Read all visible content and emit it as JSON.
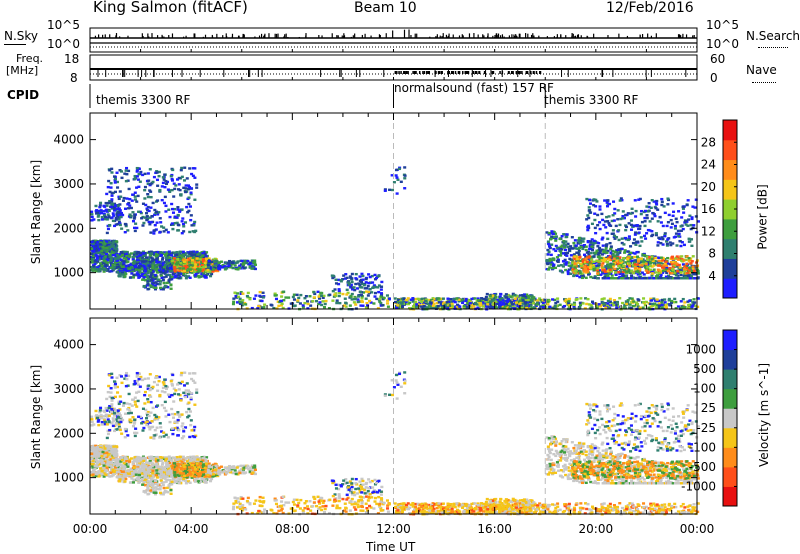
{
  "header": {
    "station": "King Salmon (fitACF)",
    "beam": "Beam 10",
    "date": "12/Feb/2016"
  },
  "sky_panel": {
    "left_label": "N.Sky",
    "right_label": "N.Search",
    "left_ticks": [
      "10^5",
      "10^0"
    ],
    "right_ticks": [
      "10^5",
      "10^0"
    ]
  },
  "freq_panel": {
    "left_label_1": "Freq.",
    "left_label_2": "[MHz]",
    "right_label": "Nave",
    "left_ticks": [
      "18",
      "8"
    ],
    "right_ticks": [
      "60",
      "0"
    ]
  },
  "cpid": {
    "label": "CPID",
    "segments": [
      {
        "name": "themis 3300 RF",
        "start": 0,
        "end": 12
      },
      {
        "name": "normalsound (fast) 157 RF",
        "start": 12,
        "end": 18
      },
      {
        "name": "themis 3300 RF",
        "start": 18,
        "end": 24
      }
    ]
  },
  "colors": {
    "power": [
      "#1e1eff",
      "#1f3f9a",
      "#2f7f6f",
      "#3e9e3e",
      "#8fcf2f",
      "#f5c518",
      "#ff8c1a",
      "#ff4f1a",
      "#e81010"
    ],
    "velocity": [
      "#e81010",
      "#ff4f1a",
      "#ff8c1a",
      "#f5c518",
      "#c8c8c8",
      "#3e9e3e",
      "#2f7f6f",
      "#1f3f9a",
      "#1e1eff"
    ]
  },
  "chart_data": [
    {
      "type": "heatmap",
      "name": "Power",
      "xlabel": "",
      "ylabel": "Slant Range [km]",
      "xlim": [
        0,
        24
      ],
      "ylim": [
        180,
        4600
      ],
      "yticks": [
        1000,
        2000,
        3000,
        4000
      ],
      "colorbar": {
        "label": "Power [dB]",
        "ticks": [
          4,
          8,
          12,
          16,
          20,
          24,
          28
        ],
        "range": [
          0,
          32
        ]
      },
      "vertical_markers": [
        12,
        18
      ]
    },
    {
      "type": "heatmap",
      "name": "Velocity",
      "xlabel": "Time UT",
      "ylabel": "Slant Range [km]",
      "xlim": [
        0,
        24
      ],
      "ylim": [
        180,
        4600
      ],
      "xticks": [
        "00:00",
        "04:00",
        "08:00",
        "12:00",
        "16:00",
        "20:00",
        "00:00"
      ],
      "yticks": [
        1000,
        2000,
        3000,
        4000
      ],
      "colorbar": {
        "label": "Velocity [m s^-1]",
        "ticks": [
          "1000",
          "500",
          "100",
          "25",
          "-25",
          "-100",
          "-500",
          "-1000"
        ]
      },
      "vertical_markers": [
        12,
        18
      ]
    }
  ]
}
